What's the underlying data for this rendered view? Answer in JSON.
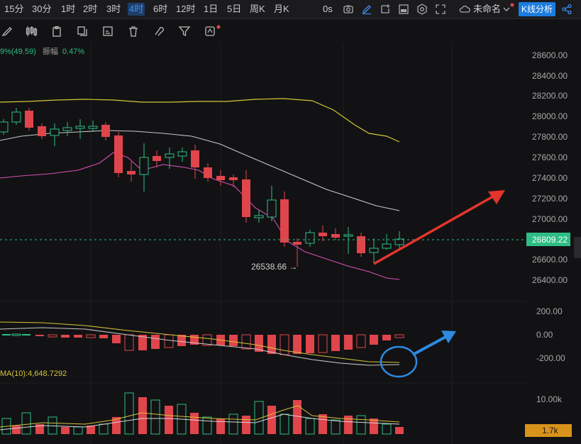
{
  "toolbar": {
    "timeframes": [
      "15分",
      "30分",
      "1时",
      "2时",
      "3时",
      "4时",
      "6时",
      "12时",
      "1日",
      "5日",
      "周K",
      "月K"
    ],
    "active_timeframe": "4时",
    "seconds_label": "0s",
    "layout_name": "未命名",
    "kline_analysis_label": "K线分析"
  },
  "indicators": {
    "main_legend_value": "9%(49.59)",
    "amplitude_label": "振幅",
    "amplitude_value": "0.47%",
    "macd_legend": "MA(10):4,648.7292"
  },
  "price_axis": {
    "labels": [
      "28600.00",
      "28400.00",
      "28200.00",
      "28000.00",
      "27800.00",
      "27600.00",
      "27400.00",
      "27200.00",
      "27000.00",
      "26600.00",
      "26400.00"
    ],
    "current_price": "26809.22",
    "low_marker": "26538.66"
  },
  "macd_axis": {
    "labels": [
      "200.00",
      "0.00",
      "-200.00"
    ]
  },
  "volume_axis": {
    "labels": [
      "10.00k"
    ],
    "current_volume": "1.7k"
  },
  "colors": {
    "up": "#2ebd85",
    "down": "#e0454b",
    "upper_band": "#d4c43a",
    "middle_band": "#c8c8c8",
    "lower_band": "#d64fb3",
    "accent": "#1c7ce0",
    "red_arrow": "#e3352b",
    "blue_arrow": "#2d8ae0"
  }
}
